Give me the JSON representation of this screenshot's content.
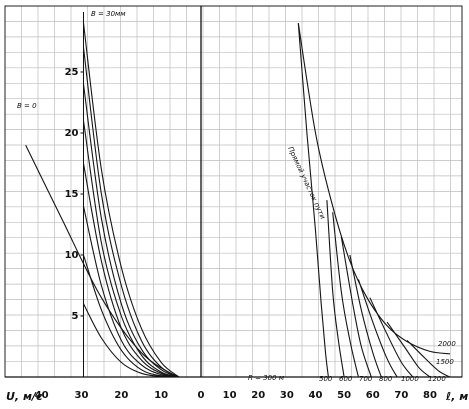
{
  "chart_data": {
    "type": "line",
    "title": "",
    "grid": true,
    "left_panel": {
      "xlabel": "U, м/с",
      "xticks": [
        "40",
        "30",
        "20",
        "10"
      ],
      "yticks": [
        "25",
        "20",
        "15",
        "10",
        "5"
      ],
      "top_label": "B = 30мм",
      "zero_label": "B = 0",
      "series": [
        {
          "name": "B = 0",
          "points": [
            [
              44,
              19
            ],
            [
              35,
              13
            ],
            [
              25,
              6.5
            ],
            [
              15,
              2
            ],
            [
              6,
              0
            ]
          ]
        },
        {
          "name": "B = 30мм",
          "points": [
            [
              29.5,
              29
            ],
            [
              25,
              17
            ],
            [
              20,
              9
            ],
            [
              15,
              4
            ],
            [
              10,
              1.2
            ],
            [
              5.5,
              0
            ]
          ]
        },
        {
          "points": [
            [
              29.5,
              27
            ],
            [
              25,
              15
            ],
            [
              20,
              7.5
            ],
            [
              15,
              3
            ],
            [
              10,
              0.8
            ],
            [
              5.5,
              0
            ]
          ]
        },
        {
          "points": [
            [
              29.5,
              24
            ],
            [
              25,
              13
            ],
            [
              20,
              6
            ],
            [
              15,
              2.3
            ],
            [
              10,
              0.6
            ],
            [
              5.5,
              0
            ]
          ]
        },
        {
          "points": [
            [
              29.5,
              21
            ],
            [
              25,
              11
            ],
            [
              20,
              5
            ],
            [
              15,
              1.8
            ],
            [
              10,
              0.4
            ],
            [
              5.5,
              0
            ]
          ]
        },
        {
          "points": [
            [
              29.5,
              17.5
            ],
            [
              25,
              9.5
            ],
            [
              20,
              4
            ],
            [
              15,
              1.4
            ],
            [
              10,
              0.3
            ],
            [
              5.5,
              0
            ]
          ]
        },
        {
          "points": [
            [
              29.5,
              14
            ],
            [
              25,
              7.5
            ],
            [
              20,
              3
            ],
            [
              15,
              1
            ],
            [
              10,
              0.2
            ],
            [
              5.5,
              0
            ]
          ]
        },
        {
          "points": [
            [
              29.5,
              10
            ],
            [
              25,
              5.5
            ],
            [
              20,
              2.2
            ],
            [
              15,
              0.6
            ],
            [
              10,
              0.1
            ],
            [
              5.5,
              0
            ]
          ]
        },
        {
          "points": [
            [
              29.5,
              6
            ],
            [
              25,
              3.2
            ],
            [
              20,
              1.2
            ],
            [
              15,
              0.3
            ],
            [
              10,
              0.05
            ],
            [
              5.5,
              0
            ]
          ]
        }
      ]
    },
    "right_panel": {
      "xlabel": "ℓ, м",
      "xticks": [
        "0",
        "10",
        "20",
        "30",
        "40",
        "50",
        "60",
        "70",
        "80"
      ],
      "line_label": "Прямой участок пути",
      "radius_labels": [
        "R = 300 м",
        "500",
        "600",
        "700",
        "800",
        "1000",
        "1200",
        "1500",
        "2000"
      ],
      "main_line": {
        "name": "Прямой участок пути",
        "points": [
          [
            34,
            29
          ],
          [
            40,
            20
          ],
          [
            46,
            14
          ],
          [
            52,
            9.5
          ],
          [
            58,
            6.5
          ],
          [
            65,
            4.2
          ],
          [
            72,
            2.9
          ],
          [
            80,
            2.1
          ],
          [
            87,
            1.9
          ]
        ]
      },
      "series": [
        {
          "name": "R = 300 м",
          "points": [
            [
              34,
              29
            ],
            [
              37,
              20
            ],
            [
              40,
              12
            ],
            [
              42,
              6
            ],
            [
              43.5,
              2
            ],
            [
              44.5,
              0
            ]
          ]
        },
        {
          "name": "500",
          "points": [
            [
              44,
              14.5
            ],
            [
              46,
              7
            ],
            [
              48,
              3
            ],
            [
              50,
              0
            ]
          ]
        },
        {
          "name": "600",
          "points": [
            [
              46,
              13.5
            ],
            [
              49,
              7
            ],
            [
              52,
              3
            ],
            [
              55,
              0
            ]
          ]
        },
        {
          "name": "700",
          "points": [
            [
              49,
              11.5
            ],
            [
              53,
              6
            ],
            [
              56,
              2.5
            ],
            [
              59.5,
              0
            ]
          ]
        },
        {
          "name": "800",
          "points": [
            [
              52,
              10
            ],
            [
              56,
              5.5
            ],
            [
              60,
              2
            ],
            [
              63,
              0
            ]
          ]
        },
        {
          "name": "1000",
          "points": [
            [
              55,
              8
            ],
            [
              60,
              4.5
            ],
            [
              65,
              1.5
            ],
            [
              68.5,
              0
            ]
          ]
        },
        {
          "name": "1200",
          "points": [
            [
              59,
              6.5
            ],
            [
              65,
              3.5
            ],
            [
              70,
              1.2
            ],
            [
              74,
              0
            ]
          ]
        },
        {
          "name": "1500",
          "points": [
            [
              65,
              4.5
            ],
            [
              71,
              2.5
            ],
            [
              76,
              0.8
            ],
            [
              80,
              0
            ]
          ]
        },
        {
          "name": "2000",
          "points": [
            [
              72,
              3
            ],
            [
              78,
              1.6
            ],
            [
              83,
              0.5
            ],
            [
              87,
              0
            ]
          ]
        }
      ]
    }
  }
}
